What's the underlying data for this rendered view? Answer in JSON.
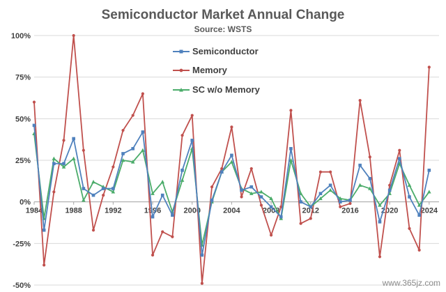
{
  "chart_data": {
    "type": "line",
    "title": "Semiconductor Market Annual Change",
    "subtitle": "Source: WSTS",
    "x": [
      1984,
      1985,
      1986,
      1987,
      1988,
      1989,
      1990,
      1991,
      1992,
      1993,
      1994,
      1995,
      1996,
      1997,
      1998,
      1999,
      2000,
      2001,
      2002,
      2003,
      2004,
      2005,
      2006,
      2007,
      2008,
      2009,
      2010,
      2011,
      2012,
      2013,
      2014,
      2015,
      2016,
      2017,
      2018,
      2019,
      2020,
      2021,
      2022,
      2023,
      2024
    ],
    "x_ticks": [
      "1984",
      "1988",
      "1992",
      "1996",
      "2000",
      "2004",
      "2008",
      "2012",
      "2016",
      "2020",
      "2024"
    ],
    "y_ticks": [
      "-50%",
      "-25%",
      "0%",
      "25%",
      "50%",
      "75%",
      "100%"
    ],
    "ylim": [
      -50,
      100
    ],
    "xlim": [
      1984,
      2025
    ],
    "grid": true,
    "legend_position": "top-center",
    "series": [
      {
        "name": "Semiconductor",
        "color": "#4f81bd",
        "marker": "square",
        "values": [
          46,
          -17,
          23,
          23,
          38,
          8,
          4,
          8,
          8,
          29,
          32,
          42,
          -9,
          4,
          -8,
          19,
          37,
          -32,
          1,
          18,
          28,
          7,
          9,
          3,
          -3,
          -9,
          32,
          0,
          -3,
          5,
          10,
          0,
          1,
          22,
          14,
          -12,
          7,
          26,
          3,
          -8,
          19
        ]
      },
      {
        "name": "Memory",
        "color": "#c0504d",
        "marker": "circle",
        "values": [
          60,
          -38,
          6,
          37,
          100,
          31,
          -17,
          4,
          21,
          43,
          52,
          65,
          -32,
          -18,
          -21,
          40,
          52,
          -49,
          9,
          20,
          45,
          3,
          20,
          -2,
          -20,
          -3,
          55,
          -13,
          -10,
          18,
          18,
          -3,
          -1,
          61,
          27,
          -33,
          10,
          31,
          -16,
          -29,
          81
        ]
      },
      {
        "name": "SC w/o Memory",
        "color": "#4bac6a",
        "marker": "triangle",
        "values": [
          41,
          -10,
          26,
          21,
          26,
          1,
          12,
          9,
          6,
          25,
          24,
          31,
          5,
          12,
          -6,
          13,
          32,
          -26,
          0,
          18,
          24,
          8,
          5,
          6,
          2,
          -10,
          25,
          5,
          -3,
          2,
          7,
          2,
          1,
          10,
          8,
          -2,
          5,
          23,
          10,
          -2,
          6
        ]
      }
    ]
  },
  "watermark": "www.365jz.com"
}
